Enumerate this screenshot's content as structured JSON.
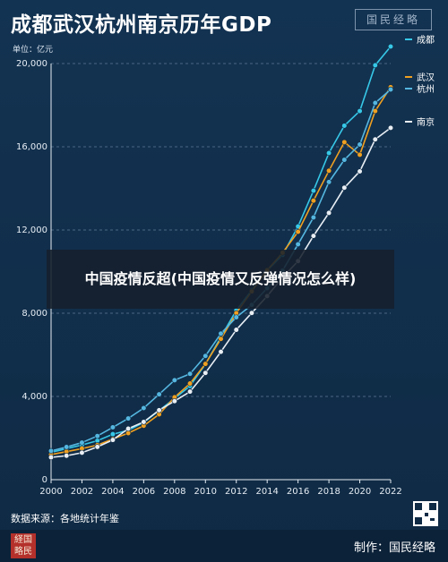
{
  "header": {
    "title": "成都武汉杭州南京历年GDP",
    "brand": "国民经略",
    "unit": "单位：亿元"
  },
  "overlay": {
    "text": "中国疫情反超(中国疫情又反弹情况怎么样)"
  },
  "footer": {
    "source": "数据来源：各地统计年鉴",
    "credit": "制作：国民经略",
    "logo_text": "经国略民"
  },
  "colors": {
    "成都": "#37c8e8",
    "武汉": "#f0a020",
    "杭州": "#55b7e0",
    "南京": "#e8eef4",
    "background": "#0f2a44"
  },
  "chart_data": {
    "type": "line",
    "title": "成都武汉杭州南京历年GDP",
    "ylabel": "单位：亿元",
    "xlabel": "",
    "x": [
      2000,
      2001,
      2002,
      2003,
      2004,
      2005,
      2006,
      2007,
      2008,
      2009,
      2010,
      2011,
      2012,
      2013,
      2014,
      2015,
      2016,
      2017,
      2018,
      2019,
      2020,
      2021,
      2022
    ],
    "x_ticks": [
      "2000",
      "2002",
      "2004",
      "2006",
      "2008",
      "2010",
      "2012",
      "2014",
      "2016",
      "2018",
      "2020",
      "2022"
    ],
    "y_ticks": [
      "0",
      "4,000",
      "8,000",
      "12,000",
      "16,000",
      "20,000"
    ],
    "ylim": [
      0,
      20000
    ],
    "grid": true,
    "legend": "right",
    "series": [
      {
        "name": "成都",
        "values": [
          1313,
          1492,
          1667,
          1870,
          2186,
          2371,
          2750,
          3324,
          3901,
          4502,
          5551,
          6855,
          8139,
          9109,
          10057,
          10801,
          12170,
          13889,
          15699,
          17013,
          17717,
          19917,
          20817
        ]
      },
      {
        "name": "武汉",
        "values": [
          1207,
          1348,
          1493,
          1662,
          1956,
          2238,
          2590,
          3142,
          3960,
          4621,
          5566,
          6762,
          8004,
          9051,
          10069,
          10906,
          11913,
          13410,
          14847,
          16223,
          15616,
          17717,
          18866
        ]
      },
      {
        "name": "杭州",
        "values": [
          1382,
          1568,
          1782,
          2099,
          2515,
          2943,
          3441,
          4104,
          4781,
          5087,
          5946,
          7020,
          7804,
          8399,
          9206,
          10050,
          11314,
          12603,
          14307,
          15373,
          16106,
          18109,
          18753
        ]
      },
      {
        "name": "南京",
        "values": [
          1073,
          1150,
          1295,
          1577,
          1910,
          2452,
          2774,
          3340,
          3775,
          4230,
          5131,
          6146,
          7202,
          8012,
          8821,
          9721,
          10503,
          11715,
          12820,
          14031,
          14818,
          16355,
          16908
        ]
      }
    ]
  }
}
